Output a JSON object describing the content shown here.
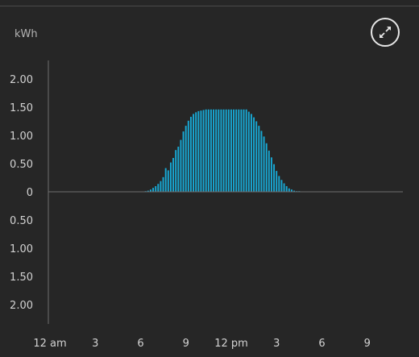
{
  "header": {
    "unit": "kWh",
    "expand_icon": "expand-arrows-icon"
  },
  "colors": {
    "bar": "#18a8d4",
    "axis": "#6e6e6e",
    "background": "#262626"
  },
  "chart_data": {
    "type": "bar",
    "title": "",
    "xlabel": "",
    "ylabel": "kWh",
    "interval_minutes": 10,
    "ylim": [
      -2,
      2
    ],
    "grid": false,
    "y_ticks": [
      {
        "value": 2,
        "label": "2.00"
      },
      {
        "value": 1.5,
        "label": "1.50"
      },
      {
        "value": 1,
        "label": "1.00"
      },
      {
        "value": 0.5,
        "label": "0.50"
      },
      {
        "value": 0,
        "label": "0"
      },
      {
        "value": -0.5,
        "label": "0.50"
      },
      {
        "value": -1,
        "label": "1.00"
      },
      {
        "value": -1.5,
        "label": "1.50"
      },
      {
        "value": -2,
        "label": "2.00"
      }
    ],
    "x_ticks": [
      {
        "hour": 0,
        "label": "12 am"
      },
      {
        "hour": 3,
        "label": "3"
      },
      {
        "hour": 6,
        "label": "6"
      },
      {
        "hour": 9,
        "label": "9"
      },
      {
        "hour": 12,
        "label": "12 pm"
      },
      {
        "hour": 15,
        "label": "3"
      },
      {
        "hour": 18,
        "label": "6"
      },
      {
        "hour": 21,
        "label": "9"
      }
    ],
    "series": [
      {
        "start_hour": 6.33,
        "values": [
          0.01,
          0.02,
          0.04,
          0.07,
          0.1,
          0.14,
          0.19,
          0.26,
          0.42,
          0.38,
          0.52,
          0.6,
          0.74,
          0.8,
          0.92,
          1.07,
          1.17,
          1.26,
          1.33,
          1.38,
          1.41,
          1.43,
          1.44,
          1.45,
          1.46,
          1.46,
          1.46,
          1.46,
          1.46,
          1.46,
          1.46,
          1.46,
          1.46,
          1.46,
          1.46,
          1.46,
          1.46,
          1.46,
          1.46,
          1.46,
          1.46,
          1.42,
          1.38,
          1.32,
          1.25,
          1.17,
          1.08,
          0.98,
          0.86,
          0.73,
          0.61,
          0.49,
          0.37,
          0.28,
          0.21,
          0.15,
          0.1,
          0.06,
          0.04,
          0.02,
          0.01,
          0.01
        ]
      }
    ]
  }
}
